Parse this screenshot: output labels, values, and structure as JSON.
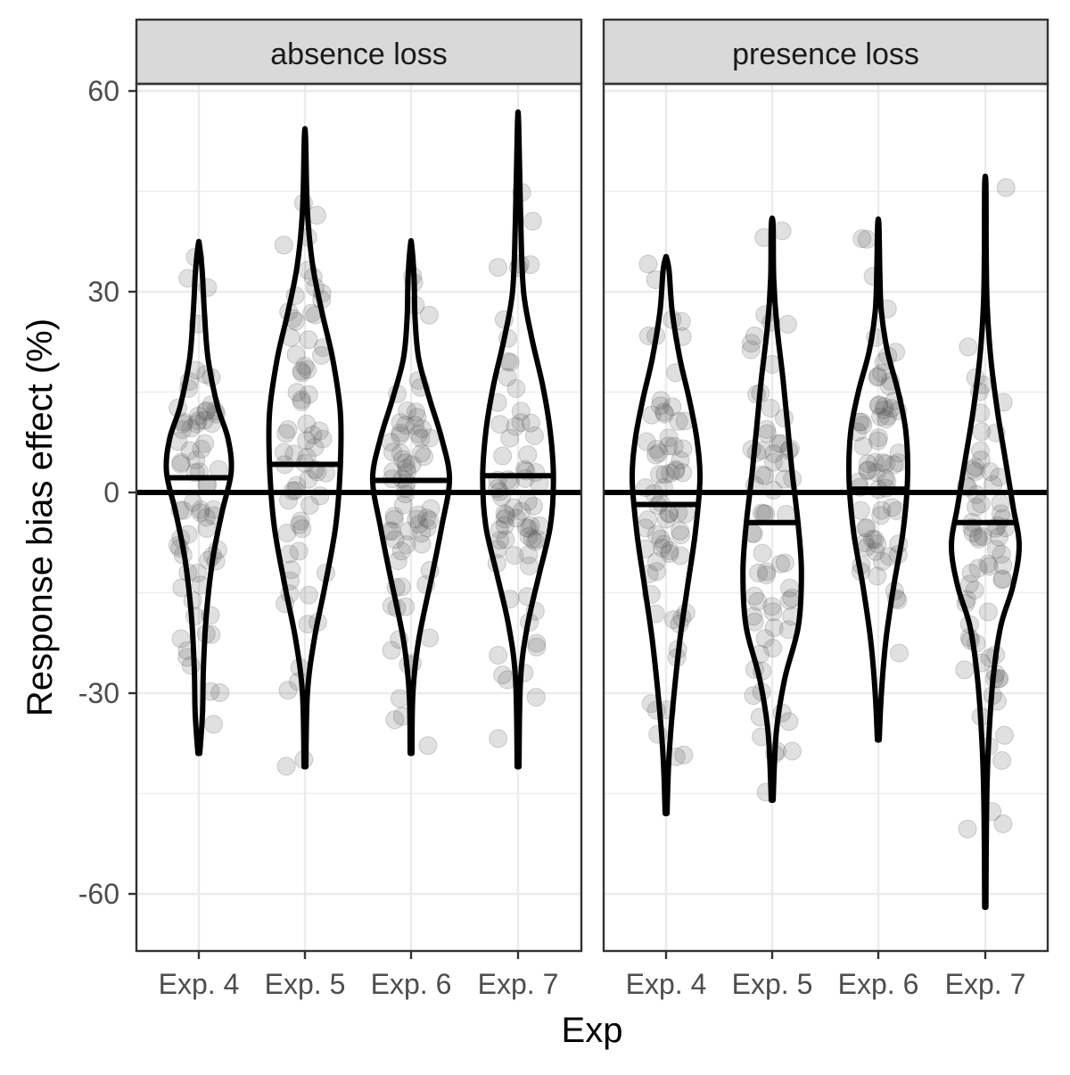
{
  "chart_data": {
    "type": "violin",
    "xlabel": "Exp",
    "ylabel": "Response bias effect (%)",
    "ylim": [
      -70,
      70
    ],
    "yticks": [
      60,
      30,
      0,
      -30,
      -60
    ],
    "ytick_labels": [
      "60",
      "30",
      "0",
      "-30",
      "-60"
    ],
    "categories": [
      "Exp. 4",
      "Exp. 5",
      "Exp. 6",
      "Exp. 7"
    ],
    "grid": true,
    "reference_line": 0,
    "colors": {
      "strip_fill": "#d9d9d9",
      "panel_border": "#333333",
      "grid": "#ebebeb",
      "violin": "#000000",
      "point": "#555555"
    },
    "panels": [
      {
        "strip": "absence loss",
        "groups": [
          {
            "category": "Exp. 4",
            "min": -39,
            "max": 37,
            "median": 2.2,
            "width": [
              [
                -39,
                0.3
              ],
              [
                -33,
                1.2
              ],
              [
                -26,
                1.5
              ],
              [
                -18,
                2.5
              ],
              [
                -10,
                4.5
              ],
              [
                -3,
                7.5
              ],
              [
                3,
                10.5
              ],
              [
                8,
                9.5
              ],
              [
                13,
                6
              ],
              [
                20,
                3
              ],
              [
                27,
                1.8
              ],
              [
                33,
                1.1
              ],
              [
                37,
                0.2
              ]
            ]
          },
          {
            "category": "Exp. 5",
            "min": -41,
            "max": 53,
            "median": 4.2,
            "width": [
              [
                -41,
                0.3
              ],
              [
                -30,
                0.8
              ],
              [
                -22,
                3
              ],
              [
                -14,
                6.5
              ],
              [
                -5,
                10
              ],
              [
                4,
                11.5
              ],
              [
                12,
                11.5
              ],
              [
                20,
                9
              ],
              [
                27,
                5.5
              ],
              [
                34,
                2.5
              ],
              [
                42,
                0.8
              ],
              [
                53,
                0.2
              ]
            ]
          },
          {
            "category": "Exp. 6",
            "min": -39,
            "max": 37,
            "median": 1.8,
            "width": [
              [
                -39,
                0.3
              ],
              [
                -30,
                0.6
              ],
              [
                -22,
                2.5
              ],
              [
                -12,
                7
              ],
              [
                -5,
                10
              ],
              [
                2,
                12.5
              ],
              [
                8,
                10
              ],
              [
                14,
                6
              ],
              [
                20,
                2.5
              ],
              [
                26,
                1.3
              ],
              [
                32,
                1
              ],
              [
                37,
                0.2
              ]
            ]
          },
          {
            "category": "Exp. 7",
            "min": -41,
            "max": 55,
            "median": 2.5,
            "width": [
              [
                -41,
                0.3
              ],
              [
                -28,
                0.8
              ],
              [
                -20,
                3
              ],
              [
                -12,
                7
              ],
              [
                -5,
                10.5
              ],
              [
                2,
                11.5
              ],
              [
                9,
                10.5
              ],
              [
                16,
                8
              ],
              [
                23,
                4.5
              ],
              [
                30,
                1.8
              ],
              [
                40,
                0.9
              ],
              [
                55,
                0.2
              ]
            ]
          }
        ]
      },
      {
        "strip": "presence loss",
        "groups": [
          {
            "category": "Exp. 4",
            "min": -48,
            "max": 35,
            "median": -1.8,
            "width": [
              [
                -48,
                0.3
              ],
              [
                -40,
                0.9
              ],
              [
                -32,
                2.2
              ],
              [
                -22,
                4.5
              ],
              [
                -14,
                7
              ],
              [
                -6,
                9.5
              ],
              [
                2,
                11
              ],
              [
                8,
                10
              ],
              [
                14,
                7.5
              ],
              [
                20,
                4.5
              ],
              [
                27,
                2
              ],
              [
                33,
                1
              ],
              [
                35,
                0.2
              ]
            ]
          },
          {
            "category": "Exp. 5",
            "min": -46,
            "max": 40,
            "median": -4.5,
            "width": [
              [
                -46,
                0.3
              ],
              [
                -36,
                1.3
              ],
              [
                -28,
                4
              ],
              [
                -20,
                8.5
              ],
              [
                -12,
                9.5
              ],
              [
                -5,
                8.5
              ],
              [
                3,
                6.5
              ],
              [
                10,
                5
              ],
              [
                17,
                3.5
              ],
              [
                25,
                1.5
              ],
              [
                32,
                0.5
              ],
              [
                40,
                0.3
              ]
            ]
          },
          {
            "category": "Exp. 6",
            "min": -37,
            "max": 40,
            "median": 0.5,
            "width": [
              [
                -37,
                0.3
              ],
              [
                -30,
                1
              ],
              [
                -22,
                2.5
              ],
              [
                -14,
                5
              ],
              [
                -6,
                8
              ],
              [
                2,
                9.5
              ],
              [
                9,
                9
              ],
              [
                15,
                6.5
              ],
              [
                21,
                3
              ],
              [
                27,
                1
              ],
              [
                33,
                0.5
              ],
              [
                40,
                0.2
              ]
            ]
          },
          {
            "category": "Exp. 7",
            "min": -62,
            "max": 46,
            "median": -4.5,
            "width": [
              [
                -62,
                0.2
              ],
              [
                -48,
                0.4
              ],
              [
                -38,
                1
              ],
              [
                -28,
                2.5
              ],
              [
                -20,
                5
              ],
              [
                -14,
                9
              ],
              [
                -8,
                11
              ],
              [
                -2,
                9
              ],
              [
                5,
                6.5
              ],
              [
                12,
                4
              ],
              [
                20,
                1.8
              ],
              [
                28,
                0.6
              ],
              [
                36,
                0.3
              ],
              [
                46,
                0.2
              ]
            ]
          }
        ]
      }
    ]
  }
}
